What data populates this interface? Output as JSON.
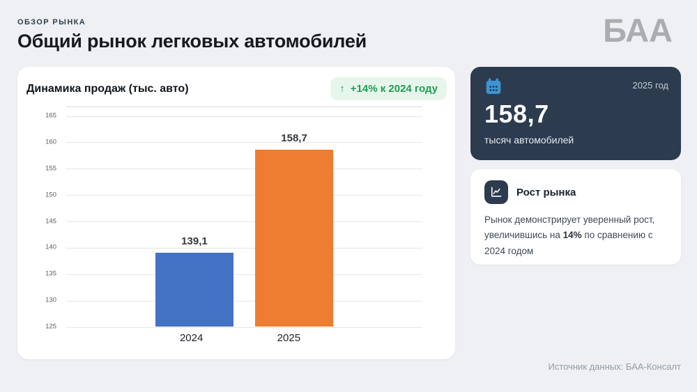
{
  "page": {
    "eyebrow": "ОБЗОР РЫНКА",
    "title": "Общий рынок легковых автомобилей",
    "logo_text": "БАА",
    "source_note": "Источник данных: БАА-Консалт"
  },
  "colors": {
    "page_bg": "#eef0f3",
    "accent_blue": "#4472c4",
    "accent_orange": "#ed7d31",
    "badge_green": "#1d9e54",
    "badge_green_bg": "#e7f6ec",
    "dark_card_bg": "#2c3b4e",
    "calendar_blue": "#3d95d3"
  },
  "chart_card": {
    "title": "Динамика продаж (тыс. авто)",
    "badge": {
      "arrow": "↑",
      "label": "+14% к 2024 году"
    }
  },
  "chart_data": {
    "type": "bar",
    "title": "Динамика продаж (тыс. авто)",
    "categories": [
      "2024",
      "2025"
    ],
    "values": [
      139.1,
      158.7
    ],
    "value_labels": [
      "139,1",
      "158,7"
    ],
    "bar_colors": [
      "#4472c4",
      "#ed7d31"
    ],
    "ylim": [
      125,
      165
    ],
    "ytick_step": 5,
    "grid": true,
    "legend": false,
    "annotation": "+14% к 2024 году"
  },
  "stat_card": {
    "period": "2025 год",
    "value": "158,7",
    "unit": "тысяч автомобилей"
  },
  "growth_card": {
    "title": "Рост рынка",
    "text_before": "Рынок демонстрирует уверенный рост, увеличившись на ",
    "text_bold": "14%",
    "text_after": " по сравнению с 2024 годом"
  }
}
